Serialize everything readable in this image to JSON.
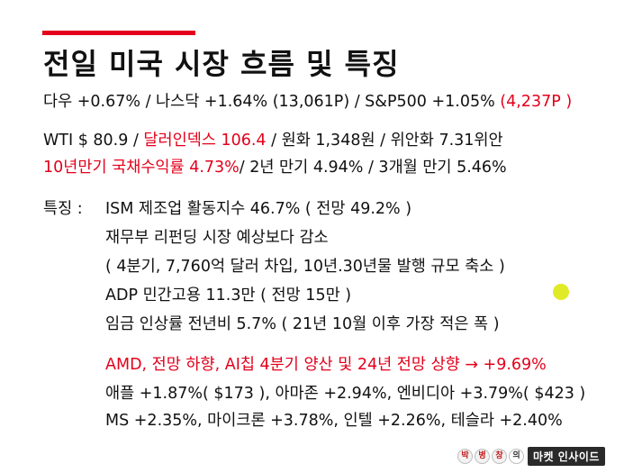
{
  "title": "전일 미국 시장 흐름 및 특징",
  "indices": {
    "main": "다우 +0.67% / 나스닥 +1.64% (13,061P) / S&P500 +1.05% ",
    "sp_level": "(4,237P )"
  },
  "macro": {
    "wti": "WTI $ 80.9 / ",
    "dollar_index": "달러인덱스 106.4",
    "fx_rest": " / 원화 1,348원 / 위안화 7.31위안",
    "treasury_10y": "10년만기 국채수익률 4.73%",
    "yields_rest": "/ 2년 만기 4.94% / 3개월 만기 5.46%"
  },
  "features": {
    "label": "특징 :",
    "items": [
      "ISM 제조업 활동지수 46.7%   ( 전망 49.2% )",
      "재무부 리펀딩 시장 예상보다 감소",
      "( 4분기, 7,760억 달러 차입, 10년.30년물 발행 규모 축소 )",
      "ADP 민간고용 11.3만 ( 전망 15만 )",
      "임금 인상률 전년비 5.7% ( 21년 10월 이후 가장 적은 폭 )"
    ]
  },
  "stocks": {
    "amd": "AMD, 전망 하향, AI칩 4분기 양산 및 24년 전망 상향 → +9.69%",
    "line2": "애플 +1.87%( $173 ), 아마존 +2.94%, 엔비디아 +3.79%( $423 )",
    "line3": "MS +2.35%, 마이크론 +3.78%, 인텔 +2.26%, 테슬라 +2.40%"
  },
  "logo": {
    "author_chars": [
      "박",
      "병",
      "창",
      "의"
    ],
    "program": "마켓 인사이드"
  },
  "colors": {
    "accent": "#e3001b",
    "text": "#111111",
    "pointer": "#dce600"
  }
}
